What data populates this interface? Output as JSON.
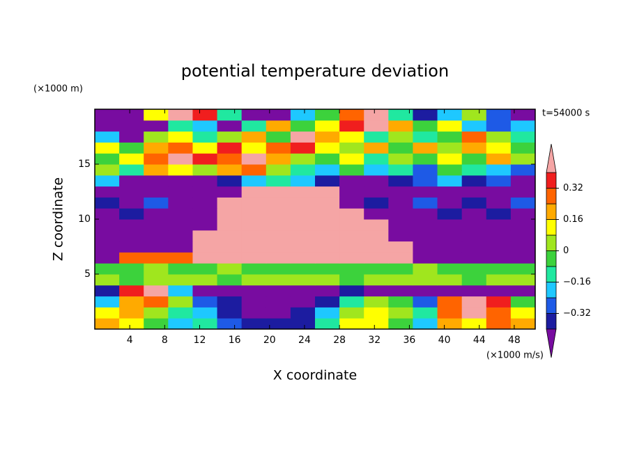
{
  "chart_data": {
    "type": "contour",
    "title": "potential temperature deviation",
    "y_unit": "(×1000 m)",
    "x_unit": "(×1000 m/s)",
    "time_label": "t=54000 s",
    "x_label": "X coordinate",
    "y_label": "Z coordinate",
    "xlim": [
      0,
      50.4
    ],
    "ylim": [
      0,
      20
    ],
    "xticks": [
      4,
      8,
      12,
      16,
      20,
      24,
      28,
      32,
      36,
      40,
      44,
      48
    ],
    "yticks": [
      5,
      10,
      15
    ],
    "x": [
      1.4,
      4.2,
      7,
      9.8,
      12.6,
      15.4,
      18.2,
      21,
      23.8,
      26.6,
      29.4,
      32.2,
      35,
      37.8,
      40.6,
      43.4,
      46.2,
      49
    ],
    "y": [
      0.5,
      1.5,
      2.5,
      3.5,
      4.5,
      5.5,
      6.5,
      7.5,
      8.5,
      9.5,
      10.5,
      11.5,
      12.5,
      13.5,
      14.5,
      15.5,
      16.5,
      17.5,
      18.5,
      19.5
    ],
    "z": [
      [
        0.2,
        0.12,
        -0.04,
        -0.2,
        -0.12,
        -0.28,
        -0.36,
        -0.36,
        -0.36,
        -0.12,
        0.12,
        0.12,
        -0.04,
        -0.2,
        0.2,
        0.12,
        0.28,
        0.2
      ],
      [
        0.12,
        0.2,
        0.04,
        -0.12,
        -0.2,
        -0.36,
        -0.5,
        -0.5,
        -0.36,
        -0.2,
        0.04,
        0.12,
        0.04,
        -0.12,
        0.28,
        0.5,
        0.28,
        0.12
      ],
      [
        -0.2,
        0.2,
        0.28,
        0.04,
        -0.28,
        -0.36,
        -0.5,
        -0.5,
        -0.5,
        -0.36,
        -0.12,
        0.04,
        -0.04,
        -0.28,
        0.28,
        0.5,
        0.36,
        -0.04
      ],
      [
        -0.36,
        0.36,
        0.5,
        -0.2,
        -0.5,
        -0.5,
        -0.5,
        -0.5,
        -0.5,
        -0.5,
        -0.36,
        -0.5,
        -0.5,
        -0.5,
        -0.5,
        -0.5,
        -0.5,
        -0.5
      ],
      [
        0.04,
        -0.04,
        0.04,
        0.04,
        0.04,
        -0.04,
        0.04,
        0.04,
        0.04,
        0.04,
        -0.04,
        0.04,
        0.04,
        0.04,
        0.04,
        -0.04,
        0.04,
        0.04
      ],
      [
        -0.04,
        -0.04,
        0.04,
        -0.04,
        -0.04,
        0.04,
        -0.04,
        -0.04,
        -0.04,
        -0.04,
        -0.04,
        -0.04,
        -0.04,
        0.04,
        -0.04,
        -0.04,
        -0.04,
        -0.04
      ],
      [
        -0.5,
        0.28,
        0.28,
        0.28,
        0.5,
        0.5,
        0.5,
        0.5,
        0.5,
        0.5,
        0.5,
        0.5,
        0.5,
        -0.5,
        -0.5,
        -0.5,
        -0.5,
        -0.5
      ],
      [
        -0.5,
        -0.5,
        -0.5,
        -0.5,
        0.5,
        0.5,
        0.5,
        0.5,
        0.5,
        0.5,
        0.5,
        0.5,
        0.5,
        -0.5,
        -0.5,
        -0.5,
        -0.5,
        -0.5
      ],
      [
        -0.5,
        -0.5,
        -0.5,
        -0.5,
        0.5,
        0.5,
        0.5,
        0.5,
        0.5,
        0.5,
        0.5,
        0.5,
        -0.5,
        -0.5,
        -0.5,
        -0.5,
        -0.5,
        -0.5
      ],
      [
        -0.5,
        -0.5,
        -0.5,
        -0.5,
        -0.5,
        0.5,
        0.5,
        0.5,
        0.5,
        0.5,
        0.5,
        0.5,
        -0.5,
        -0.5,
        -0.5,
        -0.5,
        -0.5,
        -0.5
      ],
      [
        -0.5,
        -0.36,
        -0.5,
        -0.5,
        -0.5,
        0.5,
        0.5,
        0.5,
        0.5,
        0.5,
        0.5,
        -0.5,
        -0.5,
        -0.5,
        -0.36,
        -0.5,
        -0.36,
        -0.5
      ],
      [
        -0.36,
        -0.5,
        -0.28,
        -0.5,
        -0.5,
        0.5,
        0.5,
        0.5,
        0.5,
        0.5,
        -0.5,
        -0.36,
        -0.5,
        -0.28,
        -0.5,
        -0.36,
        -0.5,
        -0.28
      ],
      [
        -0.5,
        -0.5,
        -0.5,
        -0.5,
        -0.5,
        -0.5,
        0.5,
        0.5,
        0.5,
        0.5,
        -0.5,
        -0.5,
        -0.5,
        -0.5,
        -0.5,
        -0.5,
        -0.5,
        -0.5
      ],
      [
        -0.2,
        -0.5,
        -0.5,
        -0.5,
        -0.5,
        -0.36,
        -0.2,
        -0.12,
        -0.2,
        -0.36,
        -0.5,
        -0.5,
        -0.36,
        -0.28,
        -0.2,
        -0.36,
        -0.28,
        -0.5
      ],
      [
        0.04,
        -0.12,
        0.2,
        0.12,
        0.04,
        0.2,
        0.28,
        0.04,
        -0.12,
        -0.2,
        -0.04,
        -0.2,
        -0.12,
        -0.28,
        -0.04,
        -0.12,
        -0.2,
        -0.28
      ],
      [
        -0.04,
        0.12,
        0.28,
        0.5,
        0.36,
        0.28,
        0.5,
        0.2,
        0.04,
        -0.04,
        0.12,
        -0.12,
        0.04,
        -0.04,
        0.12,
        -0.04,
        0.2,
        0.04
      ],
      [
        0.12,
        -0.04,
        0.2,
        0.28,
        0.12,
        0.36,
        0.12,
        0.28,
        0.36,
        0.12,
        0.04,
        0.2,
        -0.04,
        0.2,
        0.04,
        0.2,
        0.12,
        -0.04
      ],
      [
        -0.2,
        -0.5,
        0.04,
        0.12,
        -0.12,
        0.04,
        0.2,
        -0.04,
        0.5,
        0.2,
        0.12,
        -0.12,
        0.04,
        -0.12,
        -0.04,
        0.28,
        0.04,
        -0.12
      ],
      [
        -0.5,
        -0.5,
        -0.5,
        -0.12,
        -0.2,
        -0.5,
        -0.12,
        0.2,
        -0.04,
        0.12,
        0.36,
        0.5,
        0.2,
        -0.04,
        0.12,
        -0.2,
        -0.28,
        -0.2
      ],
      [
        -0.5,
        -0.5,
        0.12,
        0.5,
        0.36,
        -0.12,
        -0.5,
        -0.5,
        -0.2,
        -0.04,
        0.28,
        0.5,
        -0.12,
        -0.36,
        -0.2,
        0.04,
        -0.28,
        -0.5
      ]
    ],
    "levels": [
      -0.4,
      -0.32,
      -0.24,
      -0.16,
      -0.08,
      0,
      0.08,
      0.16,
      0.24,
      0.32,
      0.4
    ],
    "colors": [
      "#1c1ca0",
      "#1e5ae6",
      "#1ec8ff",
      "#20e8a0",
      "#3cd23c",
      "#a0e61e",
      "#ffff00",
      "#ffaa00",
      "#ff6400",
      "#f01e1e"
    ],
    "under_color": "#780ca0",
    "over_color": "#f5a5a5",
    "cbar_ticks": [
      {
        "value": -0.32,
        "label": "−0.32"
      },
      {
        "value": -0.16,
        "label": "−0.16"
      },
      0,
      0.16,
      0.32
    ]
  }
}
